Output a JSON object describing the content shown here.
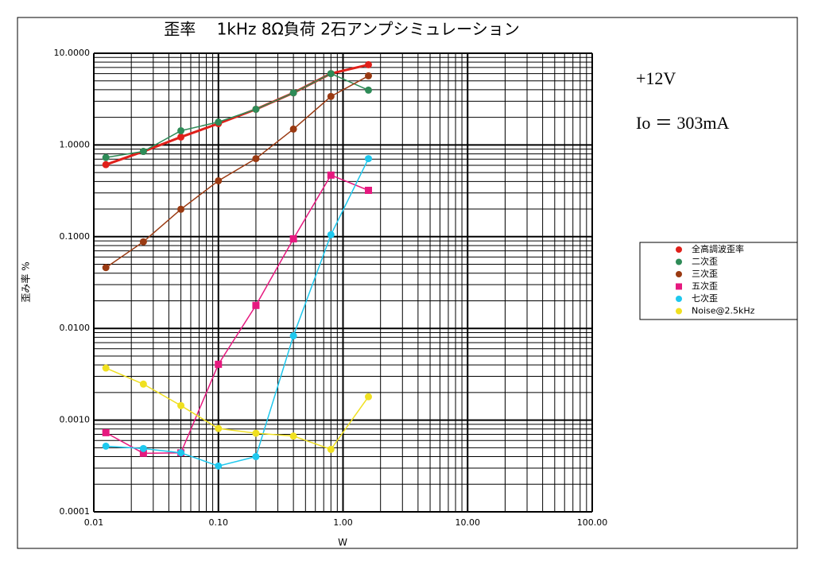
{
  "chart_data": {
    "type": "line",
    "title": "歪率　 1kHz 8Ω負荷 2石アンプシミュレーション",
    "x_label": "W",
    "y_label": "歪み率 %",
    "xscale": "log",
    "yscale": "log",
    "grid": true,
    "minor_grid": true,
    "annotations": [
      "+12V",
      "Io ＝ 303mA"
    ],
    "xlim": [
      0.01,
      100
    ],
    "ylim": [
      0.0001,
      10
    ],
    "xticks": [
      {
        "value": 0.01,
        "label": "0.01"
      },
      {
        "value": 0.1,
        "label": "0.10"
      },
      {
        "value": 1,
        "label": "1.00"
      },
      {
        "value": 10,
        "label": "10.00"
      },
      {
        "value": 100,
        "label": "100.00"
      }
    ],
    "yticks": [
      {
        "value": 10,
        "label": "10.0000"
      },
      {
        "value": 1,
        "label": "1.0000"
      },
      {
        "value": 0.1,
        "label": "0.1000"
      },
      {
        "value": 0.01,
        "label": "0.0100"
      },
      {
        "value": 0.001,
        "label": "0.0010"
      },
      {
        "value": 0.0001,
        "label": "0.0001"
      }
    ],
    "x": [
      0.0125,
      0.025,
      0.05,
      0.1,
      0.2,
      0.4,
      0.8,
      1.6
    ],
    "legend": "right",
    "series": [
      {
        "name": "全高調波歪率",
        "color": "#e0201a",
        "marker": "circle",
        "line_width": 3,
        "values": [
          0.61,
          0.85,
          1.22,
          1.71,
          2.45,
          3.7,
          6.0,
          7.5
        ]
      },
      {
        "name": "二次歪",
        "color": "#2e8b57",
        "marker": "circle",
        "line_width": 1.5,
        "values": [
          0.73,
          0.85,
          1.43,
          1.78,
          2.45,
          3.7,
          6.0,
          3.96
        ]
      },
      {
        "name": "三次歪",
        "color": "#9a3a12",
        "marker": "circle",
        "line_width": 1.5,
        "values": [
          0.046,
          0.088,
          0.199,
          0.407,
          0.71,
          1.49,
          3.38,
          5.67
        ]
      },
      {
        "name": "五次歪",
        "color": "#e6197f",
        "marker": "square",
        "line_width": 1.5,
        "values": [
          0.00073,
          0.000435,
          0.00044,
          0.00406,
          0.0178,
          0.0948,
          0.469,
          0.32
        ]
      },
      {
        "name": "七次歪",
        "color": "#1ec8ee",
        "marker": "circle",
        "line_width": 1.5,
        "values": [
          0.00052,
          0.00049,
          0.00044,
          0.000316,
          0.0004,
          0.0083,
          0.105,
          0.71
        ]
      },
      {
        "name": "Noise@2.5kHz",
        "color": "#f0e020",
        "marker": "circle",
        "line_width": 1.5,
        "values": [
          0.0037,
          0.00247,
          0.00144,
          0.00081,
          0.00072,
          0.00067,
          0.00048,
          0.0018
        ]
      }
    ]
  }
}
